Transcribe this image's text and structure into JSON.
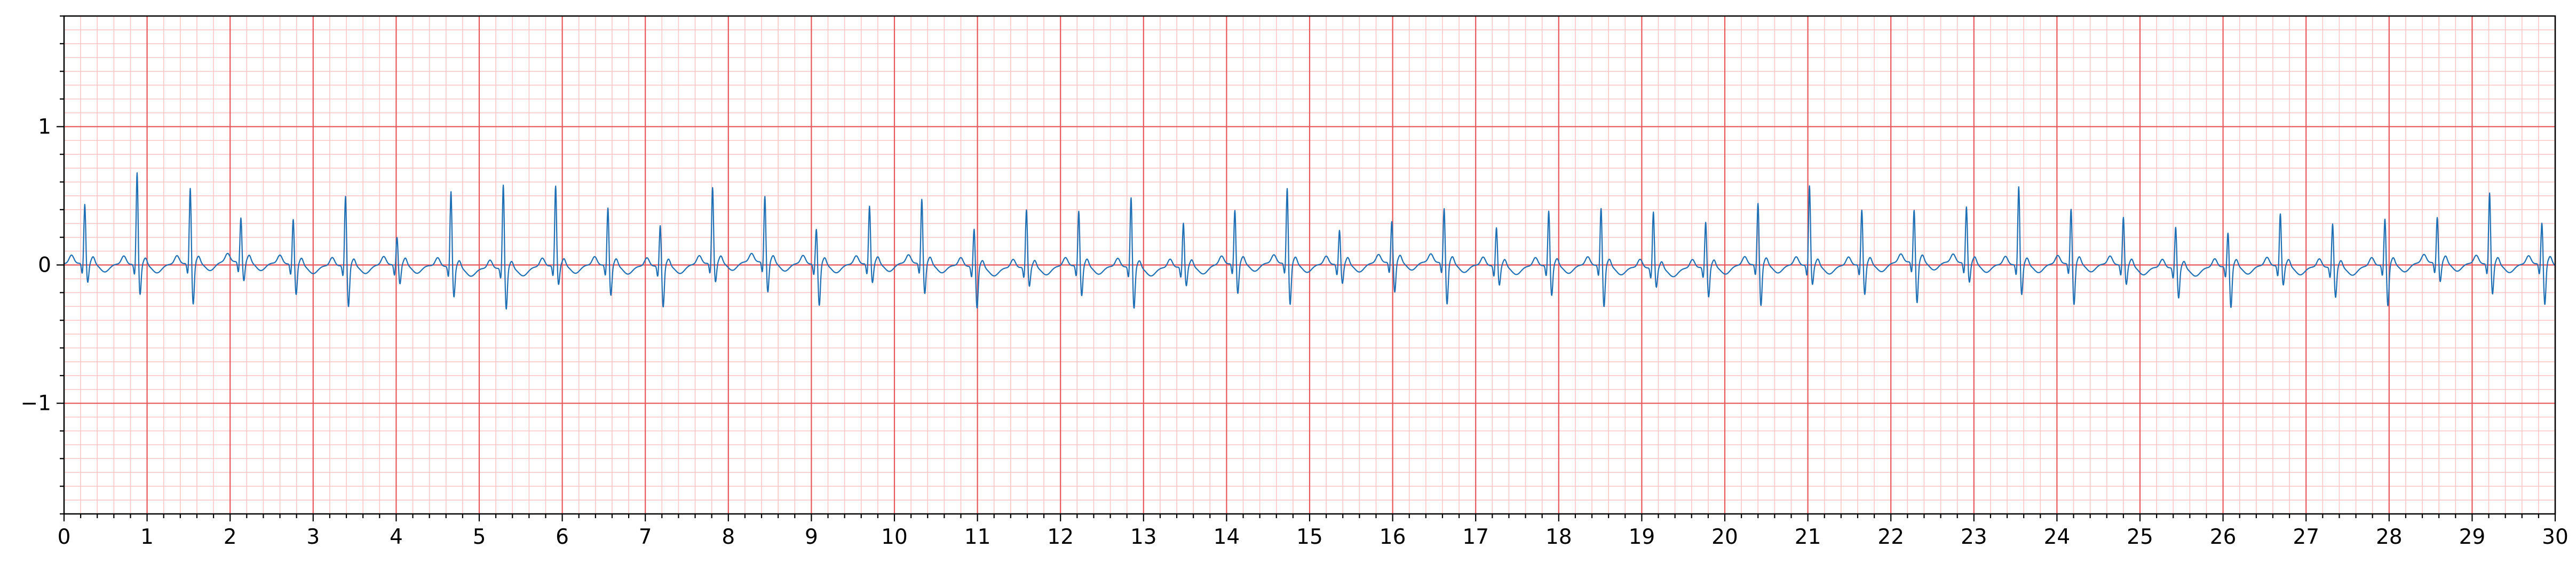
{
  "colors": {
    "major_grid": "#e8585a",
    "minor_grid": "#fbc6c6",
    "signal": "#1f6fb4",
    "axis": "#000000",
    "background": "#ffffff"
  },
  "chart_data": {
    "type": "line",
    "title": "",
    "xlabel": "",
    "ylabel": "",
    "xlim": [
      0,
      30
    ],
    "ylim": [
      -1.8,
      1.8
    ],
    "grid": true,
    "x_major_step": 1,
    "x_minor_step": 0.2,
    "y_major_step": 1,
    "y_minor_step": 0.1,
    "x_ticks": [
      0,
      1,
      2,
      3,
      4,
      5,
      6,
      7,
      8,
      9,
      10,
      11,
      12,
      13,
      14,
      15,
      16,
      17,
      18,
      19,
      20,
      21,
      22,
      23,
      24,
      25,
      26,
      27,
      28,
      29,
      30
    ],
    "x_tick_labels": [
      "0",
      "1",
      "2",
      "3",
      "4",
      "5",
      "6",
      "7",
      "8",
      "9",
      "10",
      "11",
      "12",
      "13",
      "14",
      "15",
      "16",
      "17",
      "18",
      "19",
      "20",
      "21",
      "22",
      "23",
      "24",
      "25",
      "26",
      "27",
      "28",
      "29",
      "30"
    ],
    "y_ticks": [
      -1,
      0,
      1
    ],
    "y_tick_labels": [
      "−1",
      "0",
      "1"
    ],
    "beats": {
      "t": [
        0.25,
        0.88,
        1.52,
        2.13,
        2.76,
        3.39,
        4.01,
        4.66,
        5.29,
        5.92,
        6.55,
        7.18,
        7.81,
        8.44,
        9.06,
        9.7,
        10.33,
        10.96,
        11.59,
        12.22,
        12.85,
        13.48,
        14.1,
        14.73,
        15.36,
        15.99,
        16.62,
        17.25,
        17.88,
        18.51,
        19.14,
        19.77,
        20.4,
        21.02,
        21.65,
        22.28,
        22.91,
        23.54,
        24.17,
        24.8,
        25.43,
        26.06,
        26.69,
        27.32,
        27.95,
        28.58,
        29.21,
        29.84
      ],
      "r_amp": [
        0.43,
        0.67,
        0.55,
        0.32,
        0.33,
        0.51,
        0.2,
        0.55,
        0.61,
        0.58,
        0.42,
        0.3,
        0.55,
        0.48,
        0.26,
        0.42,
        0.47,
        0.28,
        0.42,
        0.4,
        0.51,
        0.32,
        0.39,
        0.55,
        0.25,
        0.3,
        0.4,
        0.28,
        0.4,
        0.42,
        0.41,
        0.33,
        0.45,
        0.58,
        0.4,
        0.38,
        0.41,
        0.57,
        0.4,
        0.35,
        0.3,
        0.25,
        0.38,
        0.32,
        0.34,
        0.33,
        0.52,
        0.3
      ]
    }
  }
}
